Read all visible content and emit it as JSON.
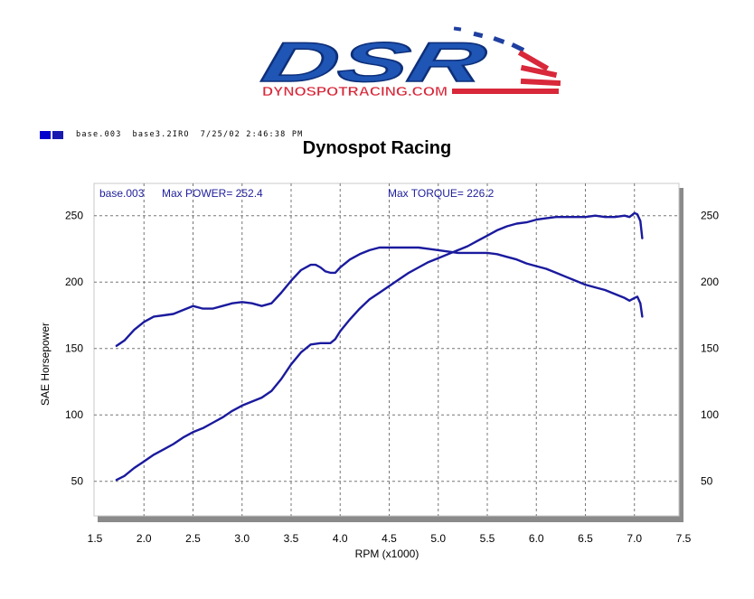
{
  "logo": {
    "main": "DSR",
    "sub": "DYNOSPOTRACING.COM"
  },
  "legend_line": {
    "run": "base.003",
    "file": "base3.2IRO",
    "datetime": "7/25/02 2:46:38 PM"
  },
  "chart_data": {
    "type": "line",
    "title": "Dynospot Racing",
    "xlabel": "RPM (x1000)",
    "ylabel": "SAE Horsepower",
    "xlim": [
      1.5,
      7.5
    ],
    "ylim": [
      25,
      265
    ],
    "xticks": [
      "1.5",
      "2.0",
      "2.5",
      "3.0",
      "3.5",
      "4.0",
      "4.5",
      "5.0",
      "5.5",
      "6.0",
      "6.5",
      "7.0",
      "7.5"
    ],
    "yticks": [
      "50",
      "100",
      "150",
      "200",
      "250"
    ],
    "grid": true,
    "annotations": {
      "run": "base.003",
      "max_power": "Max POWER= 252.4",
      "max_torque": "Max TORQUE= 226.2"
    },
    "series": [
      {
        "key": "power",
        "color": "#1a1a9e",
        "x": [
          1.72,
          1.8,
          1.9,
          2.0,
          2.1,
          2.2,
          2.3,
          2.4,
          2.5,
          2.6,
          2.7,
          2.8,
          2.9,
          3.0,
          3.1,
          3.2,
          3.3,
          3.4,
          3.5,
          3.6,
          3.7,
          3.8,
          3.9,
          3.95,
          4.0,
          4.1,
          4.2,
          4.3,
          4.4,
          4.5,
          4.6,
          4.7,
          4.8,
          4.9,
          5.0,
          5.1,
          5.2,
          5.3,
          5.4,
          5.5,
          5.6,
          5.7,
          5.8,
          5.9,
          6.0,
          6.1,
          6.2,
          6.3,
          6.4,
          6.5,
          6.6,
          6.7,
          6.8,
          6.9,
          6.95,
          7.0,
          7.03,
          7.06,
          7.08
        ],
        "y": [
          51,
          54,
          60,
          65,
          70,
          74,
          78,
          83,
          87,
          90,
          94,
          98,
          103,
          107,
          110,
          113,
          118,
          127,
          138,
          147,
          153,
          154,
          154,
          157,
          163,
          172,
          180,
          187,
          192,
          197,
          202,
          207,
          211,
          215,
          218,
          221,
          224,
          227,
          231,
          235,
          239,
          242,
          244,
          245,
          247,
          248,
          249,
          249,
          249,
          249,
          250,
          249,
          249,
          250,
          249,
          252,
          251,
          246,
          233
        ]
      },
      {
        "key": "torque",
        "color": "#1a1a9e",
        "x": [
          1.72,
          1.8,
          1.9,
          2.0,
          2.1,
          2.2,
          2.3,
          2.4,
          2.5,
          2.6,
          2.7,
          2.8,
          2.9,
          3.0,
          3.1,
          3.2,
          3.3,
          3.4,
          3.5,
          3.6,
          3.7,
          3.75,
          3.8,
          3.85,
          3.9,
          3.95,
          4.0,
          4.1,
          4.2,
          4.3,
          4.4,
          4.5,
          4.6,
          4.7,
          4.8,
          4.9,
          5.0,
          5.1,
          5.2,
          5.3,
          5.4,
          5.5,
          5.6,
          5.7,
          5.8,
          5.9,
          6.0,
          6.1,
          6.2,
          6.3,
          6.4,
          6.5,
          6.6,
          6.7,
          6.8,
          6.9,
          6.95,
          7.0,
          7.03,
          7.06,
          7.08
        ],
        "y": [
          152,
          156,
          164,
          170,
          174,
          175,
          176,
          179,
          182,
          180,
          180,
          182,
          184,
          185,
          184,
          182,
          184,
          192,
          201,
          209,
          213,
          213,
          211,
          208,
          207,
          207,
          211,
          217,
          221,
          224,
          226,
          226,
          226,
          226,
          226,
          225,
          224,
          223,
          222,
          222,
          222,
          222,
          221,
          219,
          217,
          214,
          212,
          210,
          207,
          204,
          201,
          198,
          196,
          194,
          191,
          188,
          186,
          188,
          189,
          184,
          174
        ]
      }
    ]
  }
}
